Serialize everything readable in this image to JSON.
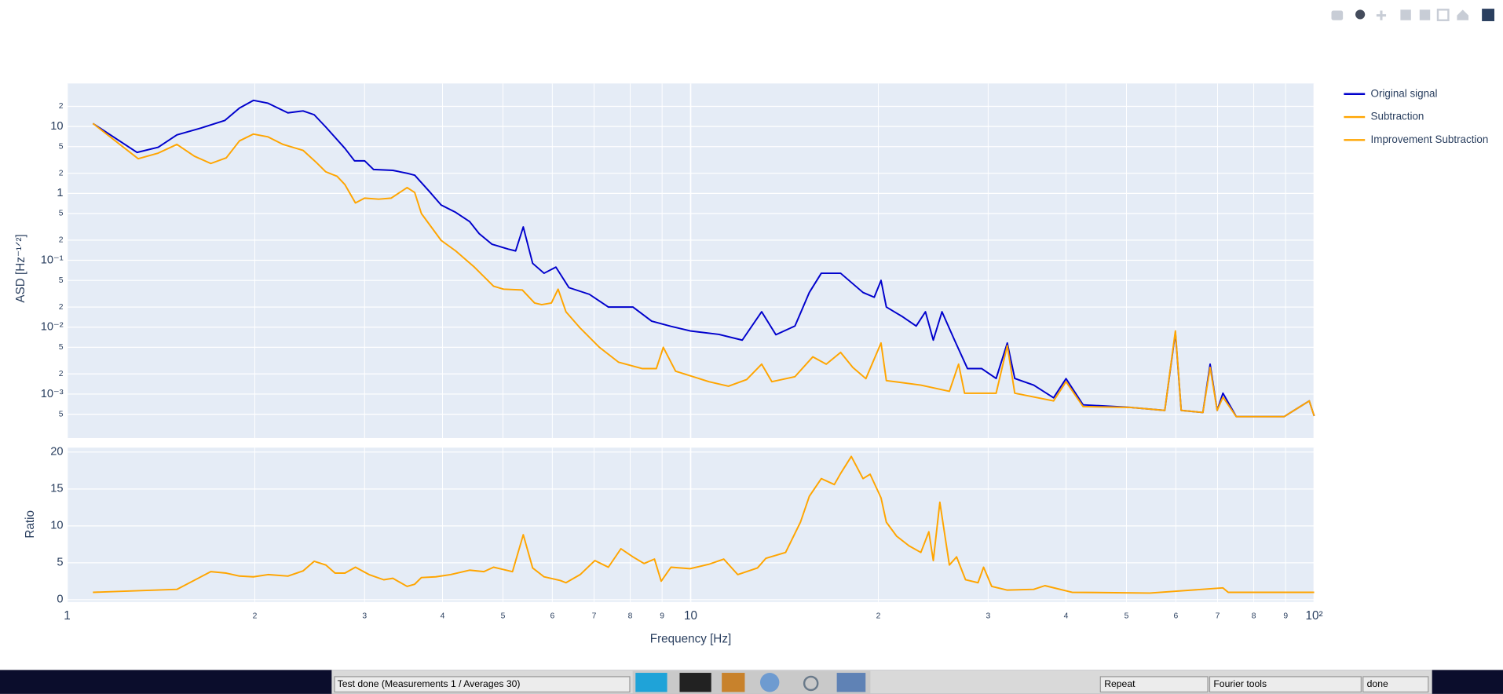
{
  "chart_data": [
    {
      "type": "line",
      "log_x": true,
      "log_y": true,
      "grid": true,
      "ylabel": "ASD [Hz⁻¹ᐟ²]",
      "xlim": [
        1,
        100
      ],
      "ylim": [
        0.00022,
        44
      ],
      "yticks": [
        {
          "value": 20,
          "label": "2"
        },
        10,
        {
          "value": 5,
          "label": "5"
        },
        {
          "value": 2,
          "label": "2"
        },
        1,
        {
          "value": 0.5,
          "label": "5"
        },
        {
          "value": 0.2,
          "label": "2"
        },
        {
          "value": 0.1,
          "label": "10⁻¹"
        },
        {
          "value": 0.05,
          "label": "5"
        },
        {
          "value": 0.02,
          "label": "2"
        },
        {
          "value": 0.01,
          "label": "10⁻²"
        },
        {
          "value": 0.005,
          "label": "5"
        },
        {
          "value": 0.002,
          "label": "2"
        },
        {
          "value": 0.001,
          "label": "10⁻³"
        },
        {
          "value": 0.0005,
          "label": "5"
        }
      ],
      "series": [
        {
          "name": "Original signal",
          "color": "#0000cc",
          "x": [
            1.1,
            1.295,
            1.4,
            1.5,
            1.64,
            1.79,
            1.89,
            1.99,
            2.1,
            2.26,
            2.39,
            2.49,
            2.6,
            2.79,
            2.89,
            3.0,
            3.1,
            3.33,
            3.51,
            3.61,
            3.81,
            3.98,
            4.2,
            4.42,
            4.58,
            4.8,
            5.1,
            5.24,
            5.39,
            5.58,
            5.82,
            6.08,
            6.38,
            6.88,
            7.38,
            8.08,
            8.66,
            9.3,
            9.98,
            11.1,
            12.1,
            13.0,
            13.7,
            14.7,
            15.5,
            16.2,
            17.4,
            18.9,
            19.7,
            20.2,
            20.6,
            21.8,
            23.0,
            23.8,
            24.5,
            25.3,
            26.5,
            27.8,
            29.3,
            30.9,
            32.2,
            33.1,
            35.5,
            38.2,
            40.0,
            42.6,
            50.9,
            57.6,
            59.9,
            61.2,
            66.3,
            68.1,
            69.9,
            71.4,
            75.0,
            89.5,
            98.2,
            100
          ],
          "values": [
            11.1,
            4.1,
            4.9,
            7.5,
            9.5,
            12.3,
            18.9,
            24.6,
            22.3,
            16.0,
            17.1,
            15.0,
            9.8,
            4.7,
            3.07,
            3.07,
            2.28,
            2.21,
            2.0,
            1.87,
            1.07,
            0.67,
            0.52,
            0.38,
            0.25,
            0.174,
            0.147,
            0.138,
            0.315,
            0.09,
            0.064,
            0.079,
            0.039,
            0.031,
            0.02,
            0.02,
            0.0123,
            0.0103,
            0.0088,
            0.0078,
            0.0064,
            0.017,
            0.0077,
            0.0104,
            0.033,
            0.064,
            0.064,
            0.033,
            0.028,
            0.05,
            0.02,
            0.0146,
            0.0104,
            0.017,
            0.0064,
            0.017,
            0.0064,
            0.0024,
            0.0024,
            0.00171,
            0.0058,
            0.00171,
            0.00136,
            0.00088,
            0.0017,
            0.00069,
            0.00063,
            0.00057,
            0.0083,
            0.00057,
            0.00053,
            0.0028,
            0.00057,
            0.00103,
            0.00046,
            0.00046,
            0.00079,
            0.00047
          ]
        },
        {
          "name": "Subtraction",
          "color": "#ffa500",
          "x": [
            1.1,
            1.3,
            1.4,
            1.5,
            1.6,
            1.7,
            1.8,
            1.89,
            1.99,
            2.1,
            2.22,
            2.39,
            2.51,
            2.6,
            2.71,
            2.79,
            2.9,
            3.0,
            3.16,
            3.31,
            3.51,
            3.61,
            3.7,
            3.98,
            4.2,
            4.5,
            4.83,
            5.01,
            5.37,
            5.62,
            5.77,
            5.98,
            6.13,
            6.31,
            6.65,
            7.14,
            7.66,
            8.37,
            8.81,
            9.04,
            9.46,
            10.7,
            11.5,
            12.3,
            13.0,
            13.5,
            14.7,
            15.7,
            16.5,
            17.4,
            18.2,
            19.1,
            20.2,
            20.6,
            23.4,
            26.0,
            26.9,
            27.5,
            30.9,
            32.2,
            33.1,
            38.2,
            40.0,
            42.6,
            50.9,
            57.6,
            59.9,
            61.2,
            66.3,
            68.1,
            69.9,
            71.4,
            75.0,
            89.5,
            98.2,
            100
          ],
          "values": [
            11.1,
            3.3,
            4.0,
            5.4,
            3.6,
            2.8,
            3.4,
            6.1,
            7.7,
            7.0,
            5.4,
            4.4,
            2.9,
            2.1,
            1.8,
            1.35,
            0.72,
            0.85,
            0.82,
            0.85,
            1.22,
            1.03,
            0.5,
            0.198,
            0.138,
            0.079,
            0.041,
            0.037,
            0.036,
            0.023,
            0.0217,
            0.023,
            0.037,
            0.017,
            0.0097,
            0.005,
            0.003,
            0.0024,
            0.0024,
            0.005,
            0.0022,
            0.00153,
            0.00131,
            0.00165,
            0.0028,
            0.00153,
            0.00182,
            0.0036,
            0.0028,
            0.0042,
            0.0025,
            0.0017,
            0.0058,
            0.00159,
            0.00136,
            0.0011,
            0.0028,
            0.00103,
            0.00103,
            0.0053,
            0.00103,
            0.00079,
            0.00153,
            0.00065,
            0.00063,
            0.00057,
            0.0088,
            0.00057,
            0.00053,
            0.0025,
            0.00057,
            0.0009,
            0.00046,
            0.00046,
            0.00079,
            0.00047
          ]
        }
      ]
    },
    {
      "type": "line",
      "log_x": true,
      "grid": true,
      "xlabel": "Frequency [Hz]",
      "ylabel": "Ratio",
      "xlim": [
        1,
        100
      ],
      "ylim": [
        -0.3,
        20.6
      ],
      "xticks": [
        1,
        2,
        3,
        4,
        5,
        6,
        7,
        8,
        9,
        10,
        {
          "value": 20,
          "label": "2"
        },
        {
          "value": 30,
          "label": "3"
        },
        {
          "value": 40,
          "label": "4"
        },
        {
          "value": 50,
          "label": "5"
        },
        {
          "value": 60,
          "label": "6"
        },
        {
          "value": 70,
          "label": "7"
        },
        {
          "value": 80,
          "label": "8"
        },
        {
          "value": 90,
          "label": "9"
        },
        {
          "value": 100,
          "label": "10²"
        }
      ],
      "yticks": [
        0,
        5,
        10,
        15,
        20
      ],
      "series": [
        {
          "name": "Improvement Subtraction",
          "color": "#ffa500",
          "x": [
            1.1,
            1.5,
            1.7,
            1.8,
            1.89,
            1.99,
            2.1,
            2.26,
            2.39,
            2.49,
            2.6,
            2.69,
            2.79,
            2.9,
            3.05,
            3.22,
            3.33,
            3.51,
            3.61,
            3.7,
            3.9,
            4.12,
            4.42,
            4.66,
            4.83,
            5.18,
            5.39,
            5.58,
            5.82,
            6.18,
            6.31,
            6.65,
            7.02,
            7.38,
            7.73,
            8.08,
            8.42,
            8.75,
            8.97,
            9.3,
            9.98,
            10.7,
            11.3,
            11.9,
            12.8,
            13.2,
            14.2,
            15.0,
            15.5,
            16.2,
            17.0,
            17.4,
            18.1,
            18.9,
            19.4,
            20.2,
            20.6,
            21.4,
            22.4,
            23.4,
            24.1,
            24.5,
            25.1,
            26.0,
            26.7,
            27.6,
            28.9,
            29.5,
            30.4,
            32.2,
            35.5,
            37.0,
            40.9,
            54.5,
            71.4,
            72.8,
            100
          ],
          "values": [
            1.0,
            1.4,
            3.8,
            3.6,
            3.2,
            3.1,
            3.4,
            3.2,
            3.9,
            5.2,
            4.7,
            3.6,
            3.6,
            4.4,
            3.4,
            2.7,
            2.9,
            1.8,
            2.1,
            3.0,
            3.1,
            3.4,
            4.0,
            3.8,
            4.4,
            3.8,
            8.8,
            4.3,
            3.1,
            2.6,
            2.3,
            3.4,
            5.3,
            4.4,
            6.9,
            5.8,
            4.9,
            5.5,
            2.5,
            4.4,
            4.2,
            4.8,
            5.5,
            3.4,
            4.3,
            5.6,
            6.4,
            10.5,
            14.0,
            16.4,
            15.6,
            17.1,
            19.4,
            16.4,
            17.0,
            13.8,
            10.5,
            8.6,
            7.3,
            6.4,
            9.2,
            5.3,
            13.2,
            4.7,
            5.8,
            2.7,
            2.3,
            4.4,
            1.8,
            1.3,
            1.4,
            1.9,
            1.0,
            0.9,
            1.6,
            1.0,
            1.0
          ]
        }
      ]
    }
  ],
  "taskbar": {
    "status": "Test done (Measurements 1 / Averages 30)",
    "mode": "Repeat",
    "tool": "Fourier tools",
    "state": "done"
  }
}
